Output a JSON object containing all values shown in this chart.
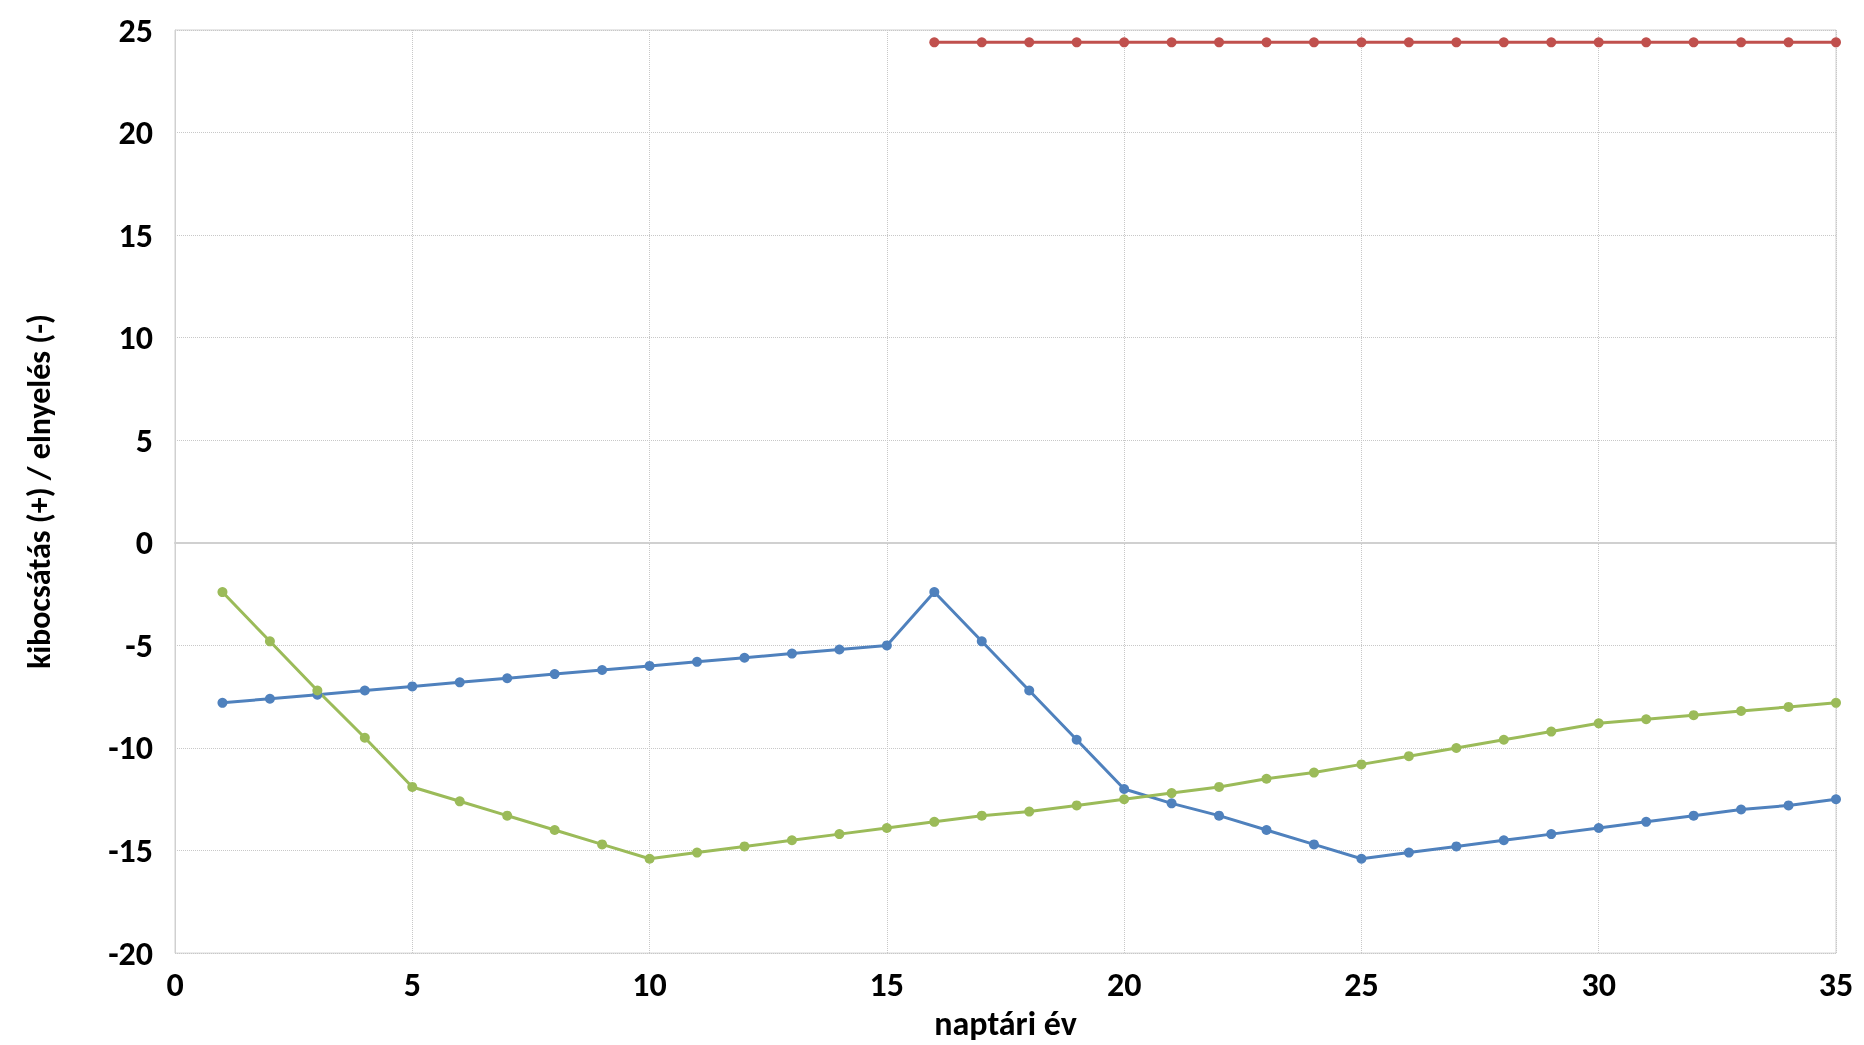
{
  "chart_data": {
    "type": "line",
    "xlabel": "naptári év",
    "ylabel": "kibocsátás (+) / elnyelés (-)",
    "xlim": [
      0,
      35
    ],
    "xticks": [
      0,
      5,
      10,
      15,
      20,
      25,
      30,
      35
    ],
    "ylim": [
      -20,
      25
    ],
    "yticks": [
      -20,
      -15,
      -10,
      -5,
      0,
      5,
      10,
      15,
      20,
      25
    ],
    "grid": true,
    "marker": "circle",
    "line_style": "solid",
    "series": [
      {
        "color": "#4f81bd",
        "x": [
          1,
          2,
          3,
          4,
          5,
          6,
          7,
          8,
          9,
          10,
          11,
          12,
          13,
          14,
          15,
          16,
          17,
          18,
          19,
          20,
          21,
          22,
          23,
          24,
          25,
          26,
          27,
          28,
          29,
          30,
          31,
          32,
          33,
          34,
          35
        ],
        "values": [
          -7.8,
          -7.6,
          -7.4,
          -7.2,
          -7.0,
          -6.8,
          -6.6,
          -6.4,
          -6.2,
          -6.0,
          -5.8,
          -5.6,
          -5.4,
          -5.2,
          -5.0,
          -2.4,
          -4.8,
          -7.2,
          -9.6,
          -12.0,
          -12.7,
          -13.3,
          -14.0,
          -14.7,
          -15.4,
          -15.1,
          -14.8,
          -14.5,
          -14.2,
          -13.9,
          -13.6,
          -13.3,
          -13.0,
          -12.8,
          -12.5
        ]
      },
      {
        "color": "#9bbb59",
        "x": [
          1,
          2,
          3,
          4,
          5,
          6,
          7,
          8,
          9,
          10,
          11,
          12,
          13,
          14,
          15,
          16,
          17,
          18,
          19,
          20,
          21,
          22,
          23,
          24,
          25,
          26,
          27,
          28,
          29,
          30,
          31,
          32,
          33,
          34,
          35
        ],
        "values": [
          -2.4,
          -4.8,
          -7.2,
          -9.5,
          -11.9,
          -12.6,
          -13.3,
          -14.0,
          -14.7,
          -15.4,
          -15.1,
          -14.8,
          -14.5,
          -14.2,
          -13.9,
          -13.6,
          -13.3,
          -13.1,
          -12.8,
          -12.5,
          -12.2,
          -11.9,
          -11.5,
          -11.2,
          -10.8,
          -10.4,
          -10.0,
          -9.6,
          -9.2,
          -8.8,
          -8.6,
          -8.4,
          -8.2,
          -8.0,
          -7.8
        ]
      },
      {
        "color": "#c0504d",
        "x": [
          16,
          17,
          18,
          19,
          20,
          21,
          22,
          23,
          24,
          25,
          26,
          27,
          28,
          29,
          30,
          31,
          32,
          33,
          34,
          35
        ],
        "values": [
          24.4,
          24.4,
          24.4,
          24.4,
          24.4,
          24.4,
          24.4,
          24.4,
          24.4,
          24.4,
          24.4,
          24.4,
          24.4,
          24.4,
          24.4,
          24.4,
          24.4,
          24.4,
          24.4,
          24.4
        ]
      }
    ]
  }
}
